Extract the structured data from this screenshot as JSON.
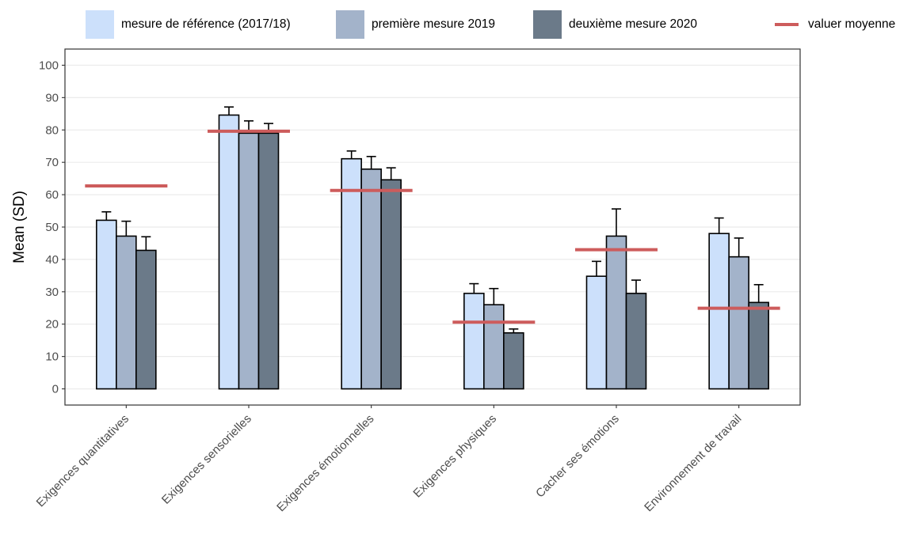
{
  "chart_data": {
    "type": "bar",
    "title": "",
    "xlabel": "",
    "ylabel": "Mean (SD)",
    "ylim": [
      -5,
      105
    ],
    "yticks": [
      0,
      10,
      20,
      30,
      40,
      50,
      60,
      70,
      80,
      90,
      100
    ],
    "grid": true,
    "legend_position": "top",
    "categories": [
      "Exigences quantitatives",
      "Exigences sensorielles",
      "Exigences émotionnelles",
      "Exigences physiques",
      "Cacher ses émotions",
      "Environnement de travail"
    ],
    "series": [
      {
        "name": "mesure de référence (2017/18)",
        "color": "#cce0fb",
        "values": [
          52.1,
          84.6,
          71.1,
          29.5,
          34.8,
          48.0
        ],
        "sd": [
          2.6,
          2.5,
          2.4,
          3.0,
          4.6,
          4.8
        ]
      },
      {
        "name": "première mesure 2019",
        "color": "#a3b3ca",
        "values": [
          47.2,
          79.0,
          67.9,
          26.0,
          47.2,
          40.8
        ],
        "sd": [
          4.6,
          3.8,
          3.9,
          5.0,
          8.4,
          5.8
        ]
      },
      {
        "name": "deuxième mesure 2020",
        "color": "#6b7a89",
        "values": [
          42.8,
          79.0,
          64.6,
          17.3,
          29.5,
          26.7
        ],
        "sd": [
          4.2,
          3.0,
          3.7,
          1.2,
          4.1,
          5.5
        ]
      }
    ],
    "reference_line": {
      "name": "valuer moyenne",
      "color": "#cd5c5c",
      "values": [
        62.7,
        79.6,
        61.3,
        20.6,
        43.0,
        24.9
      ]
    }
  }
}
